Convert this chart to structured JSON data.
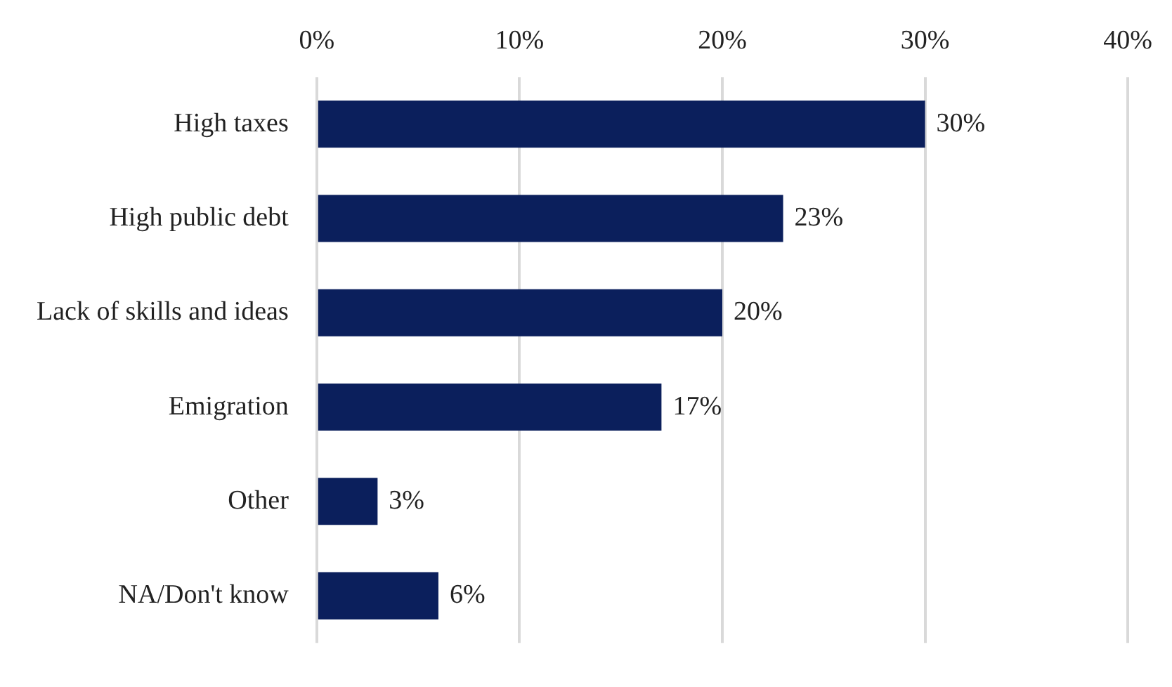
{
  "chart_data": {
    "type": "bar",
    "orientation": "horizontal",
    "categories": [
      "High taxes",
      "High public debt",
      "Lack of skills and ideas",
      "Emigration",
      "Other",
      "NA/Don't know"
    ],
    "values": [
      30,
      23,
      20,
      17,
      3,
      6
    ],
    "value_labels": [
      "30%",
      "23%",
      "20%",
      "17%",
      "3%",
      "6%"
    ],
    "color": "#0b1f5c",
    "xlim": [
      0,
      40
    ],
    "xticks": [
      {
        "value": 0,
        "label": "0%"
      },
      {
        "value": 10,
        "label": "10%"
      },
      {
        "value": 20,
        "label": "20%"
      },
      {
        "value": 30,
        "label": "30%"
      },
      {
        "value": 40,
        "label": "40%"
      }
    ],
    "grid": "x",
    "legend": false
  }
}
